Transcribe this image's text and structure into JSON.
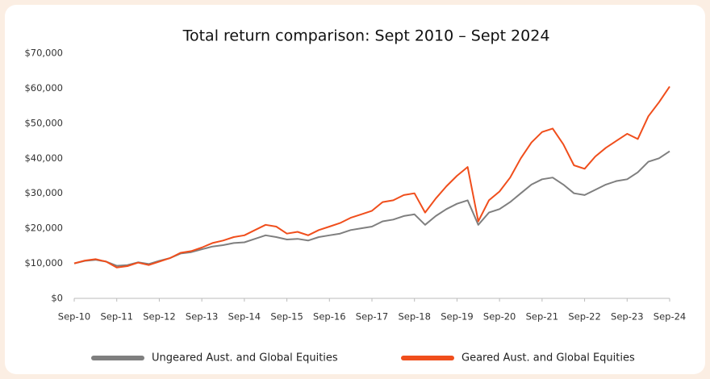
{
  "chart_data": {
    "type": "line",
    "title": "Total return comparison: Sept 2010 – Sept 2024",
    "categories": [
      "Sep-10",
      null,
      null,
      null,
      "Sep-11",
      null,
      null,
      null,
      "Sep-12",
      null,
      null,
      null,
      "Sep-13",
      null,
      null,
      null,
      "Sep-14",
      null,
      null,
      null,
      "Sep-15",
      null,
      null,
      null,
      "Sep-16",
      null,
      null,
      null,
      "Sep-17",
      null,
      null,
      null,
      "Sep-18",
      null,
      null,
      null,
      "Sep-19",
      null,
      null,
      null,
      "Sep-20",
      null,
      null,
      null,
      "Sep-21",
      null,
      null,
      null,
      "Sep-22",
      null,
      null,
      null,
      "Sep-23",
      null,
      null,
      null,
      "Sep-24"
    ],
    "series": [
      {
        "name": "Ungeared Aust. and Global Equities",
        "color": "#7f7f7f",
        "values": [
          10000,
          10700,
          11000,
          10500,
          9300,
          9500,
          10300,
          9800,
          10700,
          11500,
          12800,
          13200,
          14000,
          14800,
          15200,
          15800,
          16000,
          17000,
          18000,
          17500,
          16800,
          17000,
          16500,
          17500,
          18000,
          18500,
          19500,
          20000,
          20500,
          22000,
          22500,
          23500,
          24000,
          21000,
          23500,
          25500,
          27000,
          28000,
          21000,
          24500,
          25500,
          27500,
          30000,
          32500,
          34000,
          34500,
          32500,
          30000,
          29500,
          31000,
          32500,
          33500,
          34000,
          36000,
          39000,
          40000,
          42000
        ]
      },
      {
        "name": "Geared Aust. and Global Equities",
        "color": "#f04e1c",
        "values": [
          10000,
          10800,
          11200,
          10500,
          8800,
          9200,
          10200,
          9500,
          10500,
          11500,
          13000,
          13500,
          14500,
          15800,
          16500,
          17500,
          18000,
          19500,
          21000,
          20500,
          18500,
          19000,
          18000,
          19500,
          20500,
          21500,
          23000,
          24000,
          25000,
          27500,
          28000,
          29500,
          30000,
          24500,
          28500,
          32000,
          35000,
          37500,
          22000,
          28000,
          30500,
          34500,
          40000,
          44500,
          47500,
          48500,
          44000,
          38000,
          37000,
          40500,
          43000,
          45000,
          47000,
          45500,
          52000,
          56000,
          60500
        ]
      }
    ],
    "ylim": [
      0,
      70000
    ],
    "yticks": [
      {
        "value": 0,
        "label": "$0"
      },
      {
        "value": 10000,
        "label": "$10,000"
      },
      {
        "value": 20000,
        "label": "$20,000"
      },
      {
        "value": 30000,
        "label": "$30,000"
      },
      {
        "value": 40000,
        "label": "$40,000"
      },
      {
        "value": 50000,
        "label": "$50,000"
      },
      {
        "value": 60000,
        "label": "$60,000"
      },
      {
        "value": 70000,
        "label": "$70,000"
      }
    ],
    "grid": false,
    "legend": "bottom"
  }
}
